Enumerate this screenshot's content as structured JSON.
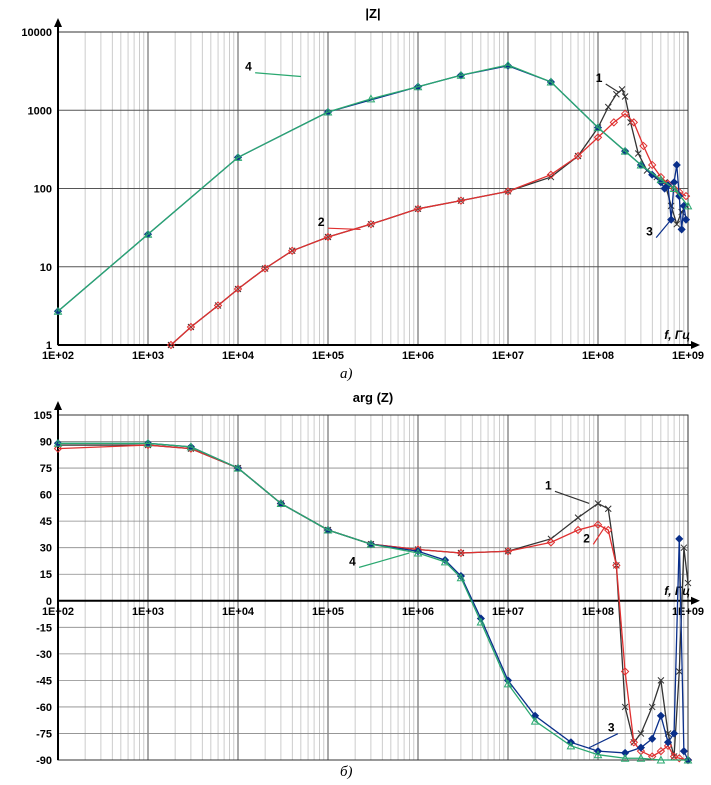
{
  "figure": {
    "caption_a": "а)",
    "caption_b": "б)"
  },
  "chart_data": [
    {
      "type": "line",
      "title": "|Z|",
      "xlabel": "f, Гц",
      "ylabel": "",
      "xscale": "log",
      "yscale": "log",
      "xlim": [
        100,
        1000000000
      ],
      "ylim": [
        1,
        10000
      ],
      "grid": true,
      "x_tick_labels": [
        "1E+02",
        "1E+03",
        "1E+04",
        "1E+05",
        "1E+06",
        "1E+07",
        "1E+08",
        "1E+09"
      ],
      "y_tick_labels": [
        "1",
        "10",
        "100",
        "1000",
        "10000"
      ],
      "series": [
        {
          "name": "1",
          "color": "#333333",
          "marker": "x",
          "x": [
            1800,
            3000,
            6000,
            10000,
            20000,
            40000,
            100000,
            300000,
            1000000,
            3000000,
            10000000,
            30000000,
            60000000,
            100000000,
            130000000,
            160000000,
            185000000,
            200000000,
            230000000,
            280000000,
            350000000,
            450000000,
            550000000,
            650000000,
            750000000,
            850000000,
            950000000
          ],
          "y": [
            1,
            1.7,
            3.2,
            5.2,
            9.5,
            16,
            24,
            35,
            55,
            70,
            92,
            140,
            260,
            600,
            1100,
            1600,
            1850,
            1500,
            700,
            280,
            170,
            140,
            120,
            60,
            35,
            50,
            60
          ]
        },
        {
          "name": "2",
          "color": "#e03030",
          "marker": "diamond",
          "x": [
            1800,
            3000,
            6000,
            10000,
            20000,
            40000,
            100000,
            300000,
            1000000,
            3000000,
            10000000,
            30000000,
            60000000,
            100000000,
            150000000,
            200000000,
            250000000,
            320000000,
            400000000,
            500000000,
            600000000,
            700000000,
            800000000,
            950000000
          ],
          "y": [
            1,
            1.7,
            3.2,
            5.2,
            9.5,
            16,
            24,
            35,
            55,
            70,
            92,
            150,
            260,
            450,
            700,
            900,
            700,
            350,
            200,
            140,
            115,
            100,
            90,
            80
          ]
        },
        {
          "name": "3",
          "color": "#0a2f8a",
          "marker": "diamond-filled",
          "x": [
            100,
            1000,
            10000,
            100000,
            1000000,
            3000000,
            10000000,
            30000000,
            100000000,
            200000000,
            300000000,
            400000000,
            500000000,
            550000000,
            600000000,
            650000000,
            700000000,
            750000000,
            800000000,
            850000000,
            900000000,
            950000000
          ],
          "y": [
            2.7,
            26,
            250,
            950,
            2000,
            2800,
            3700,
            2300,
            600,
            300,
            200,
            150,
            120,
            100,
            110,
            40,
            120,
            200,
            80,
            30,
            60,
            40
          ]
        },
        {
          "name": "4",
          "color": "#2aa870",
          "marker": "triangle",
          "x": [
            100,
            1000,
            10000,
            100000,
            300000,
            1000000,
            3000000,
            10000000,
            30000000,
            100000000,
            200000000,
            300000000,
            500000000,
            700000000,
            1000000000
          ],
          "y": [
            2.7,
            26,
            250,
            950,
            1400,
            2000,
            2800,
            3800,
            2300,
            600,
            300,
            200,
            130,
            100,
            60
          ]
        }
      ],
      "annotations": [
        "1",
        "2",
        "3",
        "4"
      ]
    },
    {
      "type": "line",
      "title": "arg (Z)",
      "xlabel": "f, Гц",
      "ylabel": "",
      "xscale": "log",
      "xlim": [
        100,
        1000000000
      ],
      "ylim": [
        -90,
        105
      ],
      "grid": true,
      "x_tick_labels": [
        "1E+02",
        "1E+03",
        "1E+04",
        "1E+05",
        "1E+06",
        "1E+07",
        "1E+08",
        "1E+09"
      ],
      "y_tick_labels": [
        "105",
        "90",
        "75",
        "60",
        "45",
        "30",
        "15",
        "0",
        "-15",
        "-30",
        "-45",
        "-60",
        "-75",
        "-90"
      ],
      "series": [
        {
          "name": "1",
          "color": "#333333",
          "marker": "x",
          "x": [
            100,
            1000,
            3000,
            10000,
            30000,
            100000,
            300000,
            1000000,
            3000000,
            10000000,
            30000000,
            60000000,
            100000000,
            130000000,
            160000000,
            200000000,
            250000000,
            300000000,
            400000000,
            500000000,
            600000000,
            700000000,
            800000000,
            900000000,
            1000000000
          ],
          "y": [
            88,
            88,
            86,
            75,
            55,
            40,
            32,
            29,
            27,
            28,
            35,
            47,
            55,
            52,
            20,
            -60,
            -80,
            -75,
            -60,
            -45,
            -75,
            -88,
            -40,
            30,
            10
          ]
        },
        {
          "name": "2",
          "color": "#e03030",
          "marker": "diamond",
          "x": [
            100,
            1000,
            3000,
            10000,
            30000,
            100000,
            300000,
            1000000,
            3000000,
            10000000,
            30000000,
            60000000,
            100000000,
            130000000,
            160000000,
            200000000,
            250000000,
            300000000,
            400000000,
            500000000,
            600000000,
            700000000,
            800000000,
            1000000000
          ],
          "y": [
            86,
            88,
            86,
            75,
            55,
            40,
            32,
            29,
            27,
            28,
            33,
            40,
            43,
            40,
            20,
            -40,
            -80,
            -85,
            -88,
            -85,
            -82,
            -88,
            -89,
            -90
          ]
        },
        {
          "name": "3",
          "color": "#0a2f8a",
          "marker": "diamond-filled",
          "x": [
            100,
            1000,
            3000,
            10000,
            30000,
            100000,
            300000,
            1000000,
            2000000,
            3000000,
            5000000,
            10000000,
            20000000,
            50000000,
            100000000,
            200000000,
            300000000,
            400000000,
            500000000,
            600000000,
            700000000,
            800000000,
            900000000,
            1000000000
          ],
          "y": [
            89,
            89,
            87,
            75,
            55,
            40,
            32,
            28,
            23,
            14,
            -10,
            -45,
            -65,
            -80,
            -85,
            -86,
            -83,
            -78,
            -65,
            -80,
            -75,
            35,
            -85,
            -90
          ]
        },
        {
          "name": "4",
          "color": "#2aa870",
          "marker": "triangle",
          "x": [
            100,
            1000,
            3000,
            10000,
            30000,
            100000,
            300000,
            1000000,
            2000000,
            3000000,
            5000000,
            10000000,
            20000000,
            50000000,
            100000000,
            200000000,
            300000000,
            500000000,
            1000000000
          ],
          "y": [
            89,
            89,
            87,
            75,
            55,
            40,
            32,
            27,
            22,
            13,
            -12,
            -47,
            -68,
            -82,
            -87,
            -89,
            -89,
            -90,
            -90
          ]
        }
      ],
      "annotations": [
        "1",
        "2",
        "3",
        "4"
      ]
    }
  ]
}
